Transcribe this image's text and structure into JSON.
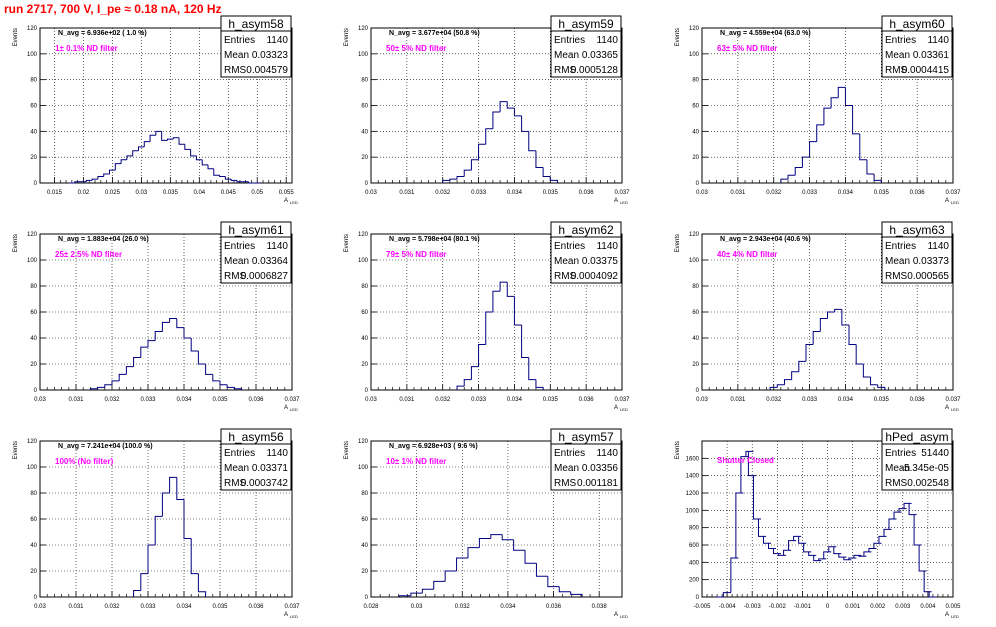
{
  "page": {
    "title": "run 2717,   700 V, I_pe ≈ 0.18 nA, 120 Hz"
  },
  "common": {
    "ylabel": "Events",
    "xlabel": "A",
    "xlabel_sub": "LED",
    "stat_labels": [
      "Entries",
      "Mean",
      "RMS"
    ],
    "hist_color": "#000080",
    "filter_color": "#ff00ff",
    "grid": true
  },
  "chart_data": [
    {
      "type": "histogram",
      "name": "h_asym58",
      "navg": "N_avg = 6.936e+02 ( 1.0 %)",
      "filter": "1± 0.1% ND filter",
      "stats": {
        "entries": "1140",
        "mean": "0.03323",
        "rms": "0.004579"
      },
      "xlim": [
        0.0125,
        0.056
      ],
      "ylim": [
        0,
        120
      ],
      "xticks": [
        0.015,
        0.02,
        0.025,
        0.03,
        0.035,
        0.04,
        0.045,
        0.05,
        0.055
      ],
      "xtick_labels": [
        "0.015",
        "0.02",
        "0.025",
        "0.03",
        "0.035",
        "0.04",
        "0.045",
        "0.05",
        "0.055"
      ],
      "yticks": [
        0,
        20,
        40,
        60,
        80,
        100,
        120
      ],
      "x": [
        0.018,
        0.019,
        0.02,
        0.021,
        0.022,
        0.023,
        0.024,
        0.025,
        0.026,
        0.027,
        0.028,
        0.029,
        0.03,
        0.031,
        0.032,
        0.033,
        0.034,
        0.035,
        0.036,
        0.037,
        0.038,
        0.039,
        0.04,
        0.041,
        0.042,
        0.043,
        0.044,
        0.045,
        0.046,
        0.047,
        0.048,
        0.049,
        0.05
      ],
      "y": [
        0,
        1,
        1,
        2,
        3,
        5,
        7,
        10,
        15,
        18,
        21,
        25,
        28,
        32,
        37,
        40,
        33,
        34,
        35,
        30,
        26,
        21,
        18,
        14,
        11,
        6,
        5,
        3,
        2,
        1,
        1,
        0,
        0
      ]
    },
    {
      "type": "histogram",
      "name": "h_asym59",
      "navg": "N_avg = 3.677e+04 (50.8 %)",
      "filter": "50± 5% ND filter",
      "stats": {
        "entries": "1140",
        "mean": "0.03365",
        "rms": "0.0005128"
      },
      "xlim": [
        0.03,
        0.037
      ],
      "ylim": [
        0,
        120
      ],
      "xticks": [
        0.03,
        0.031,
        0.032,
        0.033,
        0.034,
        0.035,
        0.036,
        0.037
      ],
      "xtick_labels": [
        "0.03",
        "0.031",
        "0.032",
        "0.033",
        "0.034",
        "0.035",
        "0.036",
        "0.037"
      ],
      "yticks": [
        0,
        20,
        40,
        60,
        80,
        100,
        120
      ],
      "x": [
        0.0321,
        0.0323,
        0.0325,
        0.0327,
        0.0329,
        0.0331,
        0.0333,
        0.0335,
        0.0337,
        0.0339,
        0.0341,
        0.0343,
        0.0345,
        0.0347,
        0.0349,
        0.0351
      ],
      "y": [
        2,
        3,
        5,
        10,
        18,
        30,
        42,
        55,
        63,
        58,
        52,
        40,
        25,
        12,
        5,
        2
      ]
    },
    {
      "type": "histogram",
      "name": "h_asym60",
      "navg": "N_avg = 4.559e+04 (63.0 %)",
      "filter": "63± 5% ND filter",
      "stats": {
        "entries": "1140",
        "mean": "0.03361",
        "rms": "0.0004415"
      },
      "xlim": [
        0.03,
        0.037
      ],
      "ylim": [
        0,
        120
      ],
      "xticks": [
        0.03,
        0.031,
        0.032,
        0.033,
        0.034,
        0.035,
        0.036,
        0.037
      ],
      "xtick_labels": [
        "0.03",
        "0.031",
        "0.032",
        "0.033",
        "0.034",
        "0.035",
        "0.036",
        "0.037"
      ],
      "yticks": [
        0,
        20,
        40,
        60,
        80,
        100,
        120
      ],
      "x": [
        0.0323,
        0.0325,
        0.0327,
        0.0329,
        0.0331,
        0.0333,
        0.0335,
        0.0337,
        0.0339,
        0.0341,
        0.0343,
        0.0345,
        0.0347,
        0.0349
      ],
      "y": [
        3,
        6,
        12,
        20,
        32,
        45,
        58,
        66,
        74,
        60,
        38,
        18,
        7,
        2
      ]
    },
    {
      "type": "histogram",
      "name": "h_asym61",
      "navg": "N_avg = 1.883e+04 (26.0 %)",
      "filter": "25± 2.5% ND filter",
      "stats": {
        "entries": "1140",
        "mean": "0.03364",
        "rms": "0.0006827"
      },
      "xlim": [
        0.03,
        0.037
      ],
      "ylim": [
        0,
        120
      ],
      "xticks": [
        0.03,
        0.031,
        0.032,
        0.033,
        0.034,
        0.035,
        0.036,
        0.037
      ],
      "xtick_labels": [
        "0.03",
        "0.031",
        "0.032",
        "0.033",
        "0.034",
        "0.035",
        "0.036",
        "0.037"
      ],
      "yticks": [
        0,
        20,
        40,
        60,
        80,
        100,
        120
      ],
      "x": [
        0.0315,
        0.0317,
        0.0319,
        0.0321,
        0.0323,
        0.0325,
        0.0327,
        0.0329,
        0.0331,
        0.0333,
        0.0335,
        0.0337,
        0.0339,
        0.0341,
        0.0343,
        0.0345,
        0.0347,
        0.0349,
        0.0351,
        0.0353,
        0.0355
      ],
      "y": [
        1,
        2,
        4,
        7,
        12,
        18,
        25,
        33,
        38,
        45,
        52,
        55,
        48,
        40,
        30,
        20,
        12,
        7,
        4,
        2,
        1
      ]
    },
    {
      "type": "histogram",
      "name": "h_asym62",
      "navg": "N_avg = 5.798e+04 (80.1 %)",
      "filter": "79± 5% ND filter",
      "stats": {
        "entries": "1140",
        "mean": "0.03375",
        "rms": "0.0004092"
      },
      "xlim": [
        0.03,
        0.037
      ],
      "ylim": [
        0,
        120
      ],
      "xticks": [
        0.03,
        0.031,
        0.032,
        0.033,
        0.034,
        0.035,
        0.036,
        0.037
      ],
      "xtick_labels": [
        "0.03",
        "0.031",
        "0.032",
        "0.033",
        "0.034",
        "0.035",
        "0.036",
        "0.037"
      ],
      "yticks": [
        0,
        20,
        40,
        60,
        80,
        100,
        120
      ],
      "x": [
        0.0325,
        0.0327,
        0.0329,
        0.0331,
        0.0333,
        0.0335,
        0.0337,
        0.0339,
        0.0341,
        0.0343,
        0.0345,
        0.0347
      ],
      "y": [
        3,
        8,
        18,
        35,
        60,
        76,
        83,
        72,
        50,
        25,
        8,
        2
      ]
    },
    {
      "type": "histogram",
      "name": "h_asym63",
      "navg": "N_avg = 2.943e+04 (40.6 %)",
      "filter": "40± 4% ND filter",
      "stats": {
        "entries": "1140",
        "mean": "0.03373",
        "rms": "0.000565"
      },
      "xlim": [
        0.03,
        0.037
      ],
      "ylim": [
        0,
        120
      ],
      "xticks": [
        0.03,
        0.031,
        0.032,
        0.033,
        0.034,
        0.035,
        0.036,
        0.037
      ],
      "xtick_labels": [
        "0.03",
        "0.031",
        "0.032",
        "0.033",
        "0.034",
        "0.035",
        "0.036",
        "0.037"
      ],
      "yticks": [
        0,
        20,
        40,
        60,
        80,
        100,
        120
      ],
      "x": [
        0.032,
        0.0322,
        0.0324,
        0.0326,
        0.0328,
        0.033,
        0.0332,
        0.0334,
        0.0336,
        0.0338,
        0.034,
        0.0342,
        0.0344,
        0.0346,
        0.0348,
        0.035
      ],
      "y": [
        2,
        4,
        8,
        14,
        22,
        35,
        45,
        55,
        60,
        62,
        50,
        35,
        20,
        10,
        4,
        2
      ]
    },
    {
      "type": "histogram",
      "name": "h_asym56",
      "navg": "N_avg = 7.241e+04 (100.0 %)",
      "filter": "100% (No filter)",
      "stats": {
        "entries": "1140",
        "mean": "0.03371",
        "rms": "0.0003742"
      },
      "xlim": [
        0.03,
        0.037
      ],
      "ylim": [
        0,
        120
      ],
      "xticks": [
        0.03,
        0.031,
        0.032,
        0.033,
        0.034,
        0.035,
        0.036,
        0.037
      ],
      "xtick_labels": [
        "0.03",
        "0.031",
        "0.032",
        "0.033",
        "0.034",
        "0.035",
        "0.036",
        "0.037"
      ],
      "yticks": [
        0,
        20,
        40,
        60,
        80,
        100,
        120
      ],
      "x": [
        0.0327,
        0.0329,
        0.0331,
        0.0333,
        0.0335,
        0.0337,
        0.0339,
        0.0341,
        0.0343,
        0.0345
      ],
      "y": [
        5,
        18,
        40,
        62,
        80,
        92,
        75,
        45,
        18,
        4
      ]
    },
    {
      "type": "histogram",
      "name": "h_asym57",
      "navg": "N_avg = 6.928e+03 ( 9.6 %)",
      "filter": "10± 1% ND filter",
      "stats": {
        "entries": "1140",
        "mean": "0.03356",
        "rms": "0.001181"
      },
      "xlim": [
        0.028,
        0.039
      ],
      "ylim": [
        0,
        120
      ],
      "xticks": [
        0.028,
        0.03,
        0.032,
        0.034,
        0.036,
        0.038
      ],
      "xtick_labels": [
        "0.028",
        "0.03",
        "0.032",
        "0.034",
        "0.036",
        "0.038"
      ],
      "yticks": [
        0,
        20,
        40,
        60,
        80,
        100,
        120
      ],
      "x": [
        0.0295,
        0.03,
        0.0305,
        0.031,
        0.0315,
        0.032,
        0.0325,
        0.033,
        0.0335,
        0.034,
        0.0345,
        0.035,
        0.0355,
        0.036,
        0.0365,
        0.037
      ],
      "y": [
        1,
        3,
        6,
        12,
        20,
        30,
        38,
        45,
        48,
        44,
        36,
        26,
        16,
        8,
        4,
        2
      ]
    },
    {
      "type": "histogram",
      "name": "hPed_asym",
      "navg": "",
      "filter": "Shutter Closed",
      "stats": {
        "entries": "51440",
        "mean": "-5.345e-05",
        "rms": "0.002548"
      },
      "xlim": [
        -0.005,
        0.005
      ],
      "ylim": [
        0,
        1800
      ],
      "xticks": [
        -0.005,
        -0.004,
        -0.003,
        -0.002,
        -0.001,
        0,
        0.001,
        0.002,
        0.003,
        0.004,
        0.005
      ],
      "xtick_labels": [
        "-0.005",
        "-0.004",
        "-0.003",
        "-0.002",
        "-0.001",
        "0",
        "0.001",
        "0.002",
        "0.003",
        "0.004",
        "0.005"
      ],
      "yticks": [
        0,
        200,
        400,
        600,
        800,
        1000,
        1200,
        1400,
        1600
      ],
      "x": [
        -0.0043,
        -0.004,
        -0.0037,
        -0.0035,
        -0.0033,
        -0.0031,
        -0.003,
        -0.0028,
        -0.0026,
        -0.0024,
        -0.0022,
        -0.002,
        -0.0018,
        -0.0016,
        -0.0014,
        -0.0012,
        -0.001,
        -0.0008,
        -0.0006,
        -0.0004,
        -0.0002,
        0,
        0.0002,
        0.0004,
        0.0006,
        0.0008,
        0.001,
        0.0012,
        0.0014,
        0.0016,
        0.0018,
        0.002,
        0.0022,
        0.0024,
        0.0026,
        0.0028,
        0.003,
        0.0032,
        0.0034,
        0.0036,
        0.0038,
        0.004,
        0.0042
      ],
      "y": [
        0,
        50,
        450,
        1200,
        1620,
        1680,
        1400,
        900,
        700,
        620,
        560,
        500,
        480,
        540,
        650,
        700,
        620,
        520,
        480,
        420,
        440,
        520,
        580,
        500,
        460,
        430,
        450,
        480,
        470,
        520,
        560,
        620,
        700,
        780,
        900,
        980,
        1020,
        1080,
        950,
        600,
        300,
        60,
        0
      ]
    }
  ]
}
